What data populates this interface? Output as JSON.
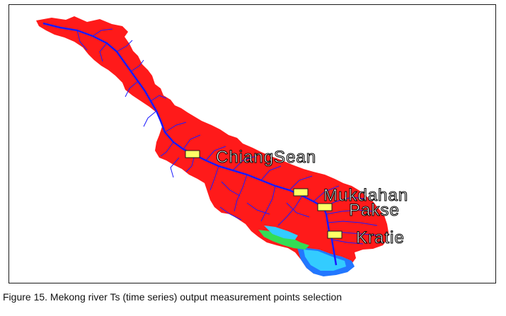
{
  "caption": "Figure 15. Mekong river Ts (time series) output measurement points selection",
  "stations": [
    {
      "id": "chiangsean",
      "label": "ChiangSean"
    },
    {
      "id": "mukdahan",
      "label": "Mukdahan"
    },
    {
      "id": "pakse",
      "label": "Pakse"
    },
    {
      "id": "kratie",
      "label": "Kratie"
    }
  ],
  "colors": {
    "basin": "#ff1a1a",
    "rivers": "#1a1aff",
    "marker": "#ffff66",
    "marker_border": "#1a1a1a",
    "delta_shallow": "#33ccff",
    "delta_green": "#33dd55",
    "delta_deep": "#2277ff"
  },
  "icons": {
    "station_marker": "yellow-rectangle-marker"
  }
}
